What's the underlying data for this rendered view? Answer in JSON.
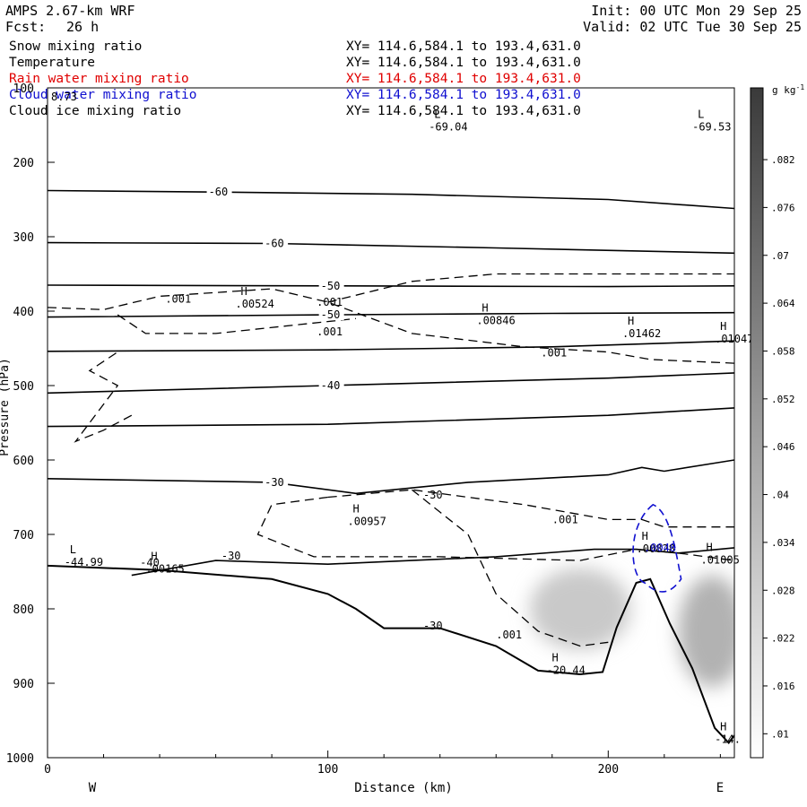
{
  "header": {
    "model": "AMPS 2.67-km WRF",
    "forecast_label": "Fcst:",
    "forecast_hours": "26 h",
    "init_time": "Init: 00 UTC Mon 29 Sep 25",
    "valid_time": "Valid: 02 UTC Tue 30 Sep 25"
  },
  "fields": [
    {
      "name": "Snow mixing ratio",
      "xy": "XY= 114.6,584.1 to 193.4,631.0",
      "color": "#000000"
    },
    {
      "name": "Temperature",
      "xy": "XY= 114.6,584.1 to 193.4,631.0",
      "color": "#000000"
    },
    {
      "name": "Rain water mixing ratio",
      "xy": "XY= 114.6,584.1 to 193.4,631.0",
      "color": "#e00000"
    },
    {
      "name": "Cloud water mixing ratio",
      "xy": "XY= 114.6,584.1 to 193.4,631.0",
      "color": "#1010d0"
    },
    {
      "name": "Cloud ice mixing ratio",
      "xy": "XY= 114.6,584.1 to 193.4,631.0",
      "color": "#000000"
    }
  ],
  "chart_data": {
    "type": "heatmap",
    "xlabel": "Distance (km)",
    "ylabel": "Pressure (hPa)",
    "xlim": [
      0,
      245
    ],
    "ylim": [
      1000,
      100
    ],
    "x_ticks": [
      0,
      100,
      200
    ],
    "y_ticks": [
      100,
      200,
      300,
      400,
      500,
      600,
      700,
      800,
      900,
      1000
    ],
    "left_end_label": "W",
    "right_end_label": "E",
    "colorbar": {
      "unit": "g kg",
      "unit_exp": "-1",
      "ticks": [
        ".01",
        ".016",
        ".022",
        ".028",
        ".034",
        ".04",
        ".046",
        ".052",
        ".058",
        ".064",
        ".07",
        ".076",
        ".082"
      ],
      "min": 0.007,
      "max": 0.091
    },
    "snow_blobs": [
      {
        "x": 190,
        "p": 800,
        "rx": 18,
        "rp": 55,
        "value": 0.03
      },
      {
        "x": 237,
        "p": 830,
        "rx": 12,
        "rp": 75,
        "value": 0.04
      }
    ],
    "temperature_contours": [
      {
        "label": "-60",
        "points": [
          [
            0,
            238
          ],
          [
            60,
            240
          ],
          [
            130,
            243
          ],
          [
            200,
            250
          ],
          [
            245,
            262
          ]
        ]
      },
      {
        "label": "-60",
        "points": [
          [
            0,
            308
          ],
          [
            80,
            309
          ],
          [
            160,
            315
          ],
          [
            245,
            322
          ]
        ]
      },
      {
        "label": "-50",
        "points": [
          [
            0,
            365
          ],
          [
            100,
            366
          ],
          [
            200,
            367
          ],
          [
            245,
            366
          ]
        ]
      },
      {
        "label": "-50",
        "points": [
          [
            0,
            408
          ],
          [
            100,
            405
          ],
          [
            180,
            403
          ],
          [
            245,
            402
          ]
        ]
      },
      {
        "label": "",
        "points": [
          [
            0,
            454
          ],
          [
            100,
            452
          ],
          [
            180,
            448
          ],
          [
            245,
            440
          ]
        ]
      },
      {
        "label": "-40",
        "points": [
          [
            0,
            510
          ],
          [
            100,
            500
          ],
          [
            200,
            490
          ],
          [
            245,
            483
          ]
        ]
      },
      {
        "label": "",
        "points": [
          [
            0,
            555
          ],
          [
            100,
            552
          ],
          [
            200,
            540
          ],
          [
            245,
            530
          ]
        ]
      },
      {
        "label": "-30",
        "points": [
          [
            0,
            625
          ],
          [
            80,
            630
          ],
          [
            110,
            645
          ],
          [
            150,
            630
          ],
          [
            200,
            620
          ],
          [
            212,
            610
          ],
          [
            220,
            615
          ],
          [
            245,
            600
          ]
        ]
      },
      {
        "label": "",
        "points": [
          [
            30,
            755
          ],
          [
            60,
            735
          ],
          [
            100,
            740
          ],
          [
            160,
            730
          ],
          [
            195,
            720
          ],
          [
            210,
            720
          ],
          [
            225,
            725
          ],
          [
            245,
            718
          ]
        ]
      }
    ],
    "terrain": [
      [
        0,
        742
      ],
      [
        40,
        748
      ],
      [
        80,
        760
      ],
      [
        100,
        780
      ],
      [
        110,
        800
      ],
      [
        120,
        826
      ],
      [
        140,
        826
      ],
      [
        160,
        850
      ],
      [
        175,
        883
      ],
      [
        190,
        888
      ],
      [
        198,
        885
      ],
      [
        203,
        825
      ],
      [
        210,
        765
      ],
      [
        215,
        760
      ],
      [
        222,
        820
      ],
      [
        230,
        880
      ],
      [
        238,
        960
      ],
      [
        243,
        980
      ],
      [
        245,
        970
      ]
    ],
    "contour_labels": [
      {
        "text": "-40",
        "x": 33,
        "p": 738
      },
      {
        "text": "-30",
        "x": 62,
        "p": 729
      },
      {
        "text": "-30",
        "x": 134,
        "p": 647
      },
      {
        "text": "-30",
        "x": 134,
        "p": 823
      },
      {
        "text": ".001",
        "x": 42,
        "p": 384
      },
      {
        "text": ".001",
        "x": 96,
        "p": 388
      },
      {
        "text": ".001",
        "x": 96,
        "p": 428
      },
      {
        "text": ".001",
        "x": 176,
        "p": 456
      },
      {
        "text": ".001",
        "x": 180,
        "p": 680
      },
      {
        "text": ".001",
        "x": 160,
        "p": 835
      }
    ],
    "highs_lows": [
      {
        "kind": "L",
        "value": "-69.04",
        "x": 136,
        "p": 150
      },
      {
        "kind": "L",
        "value": "-69.53",
        "x": 230,
        "p": 150
      },
      {
        "kind": "H",
        "value": ".00524",
        "x": 67,
        "p": 388
      },
      {
        "kind": "H",
        "value": ".00846",
        "x": 153,
        "p": 410
      },
      {
        "kind": "H",
        "value": ".01462",
        "x": 205,
        "p": 428
      },
      {
        "kind": "H",
        "value": ".01047",
        "x": 238,
        "p": 435
      },
      {
        "kind": "H",
        "value": ".00957",
        "x": 107,
        "p": 680
      },
      {
        "kind": "H",
        "value": ".00165",
        "x": 35,
        "p": 744
      },
      {
        "kind": "H",
        "value": ".00828",
        "x": 210,
        "p": 717
      },
      {
        "kind": "H",
        "value": ".01005",
        "x": 233,
        "p": 732
      },
      {
        "kind": "H",
        "value": "-20.44",
        "x": 178,
        "p": 880
      },
      {
        "kind": "H",
        "value": "-14.",
        "x": 238,
        "p": 973
      },
      {
        "kind": "L",
        "value": "-44.99",
        "x": 6,
        "p": 735
      }
    ],
    "corner_value": "8.73",
    "cloud_water_label": ".0048"
  }
}
